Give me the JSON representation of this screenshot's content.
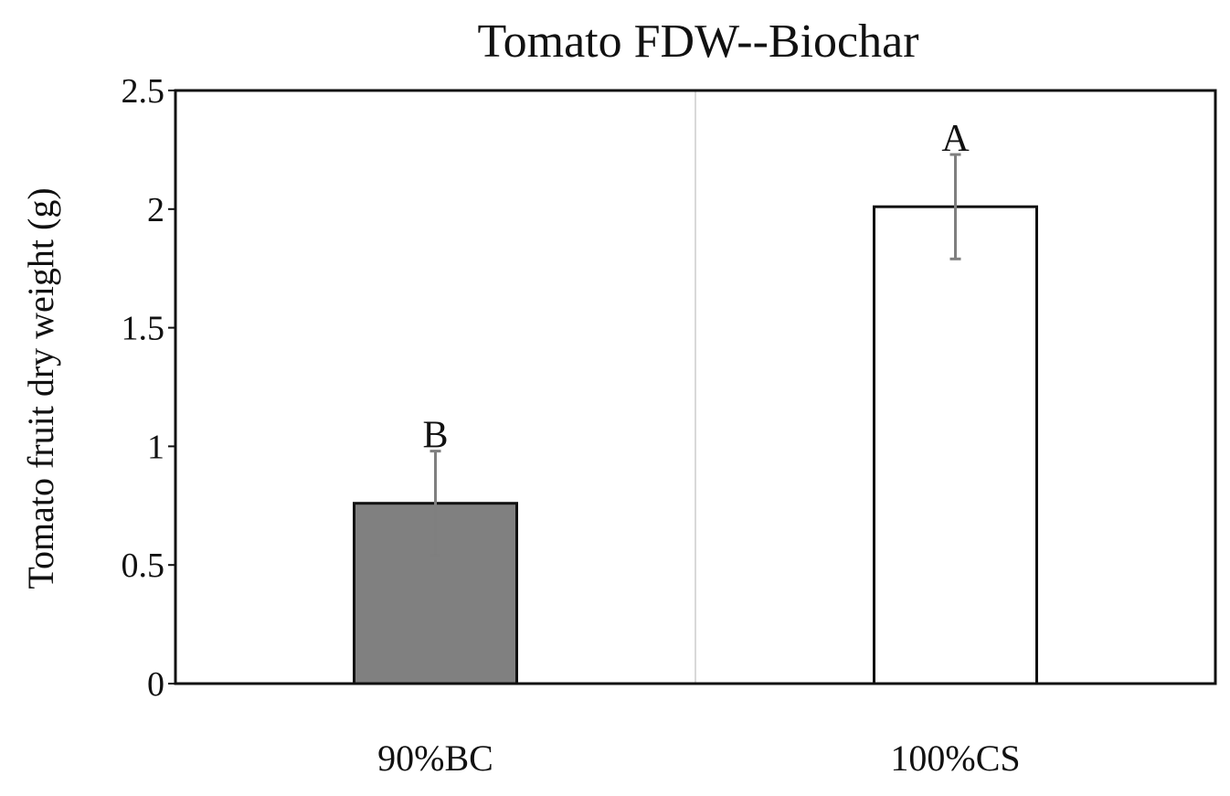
{
  "chart_data": {
    "type": "bar",
    "title": "Tomato FDW--Biochar",
    "xlabel": "",
    "ylabel": "Tomato fruit dry weight (g)",
    "categories": [
      "90%BC",
      "100%CS"
    ],
    "values": [
      0.76,
      2.01
    ],
    "error": [
      0.22,
      0.22
    ],
    "significance_letters": [
      "B",
      "A"
    ],
    "bar_colors": [
      "#808080",
      "#ffffff"
    ],
    "ylim": [
      0,
      2.5
    ],
    "yticks": [
      0,
      0.5,
      1,
      1.5,
      2,
      2.5
    ],
    "ytick_labels": [
      "0",
      "0.5",
      "1",
      "1.5",
      "2",
      "2.5"
    ],
    "grid": false,
    "legend": "none"
  }
}
